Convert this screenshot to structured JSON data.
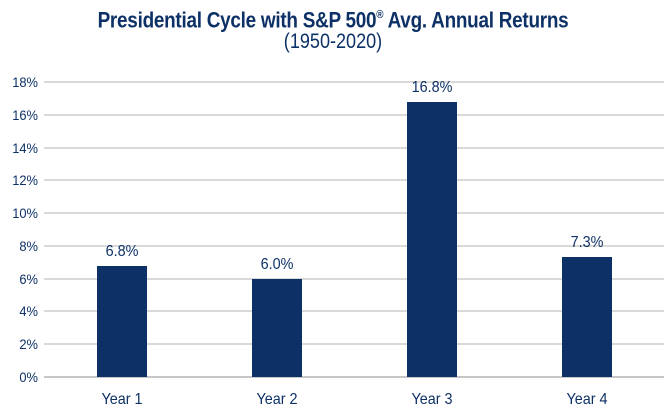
{
  "title": {
    "part1": "Presidential Cycle with S&P 500",
    "reg_mark": "®",
    "part2": " Avg. Annual Returns",
    "line2": "(1950-2020)"
  },
  "chart_data": {
    "type": "bar",
    "title": "Presidential Cycle with S&P 500® Avg. Annual Returns",
    "subtitle": "(1950-2020)",
    "categories": [
      "Year 1",
      "Year 2",
      "Year 3",
      "Year 4"
    ],
    "values": [
      6.8,
      6.0,
      16.8,
      7.3
    ],
    "data_labels": [
      "6.8%",
      "6.0%",
      "16.8%",
      "7.3%"
    ],
    "xlabel": "",
    "ylabel": "",
    "ylim": [
      0,
      18
    ],
    "ytick_step": 2,
    "ytick_labels": [
      "0%",
      "2%",
      "4%",
      "6%",
      "8%",
      "10%",
      "12%",
      "14%",
      "16%",
      "18%"
    ],
    "grid": "horizontal",
    "legend": "none",
    "colors": {
      "bar": "#0d3166",
      "text": "#0d3166",
      "gridline": "#d9d9d9",
      "baseline": "#c6c6c6",
      "background": "#ffffff"
    }
  }
}
